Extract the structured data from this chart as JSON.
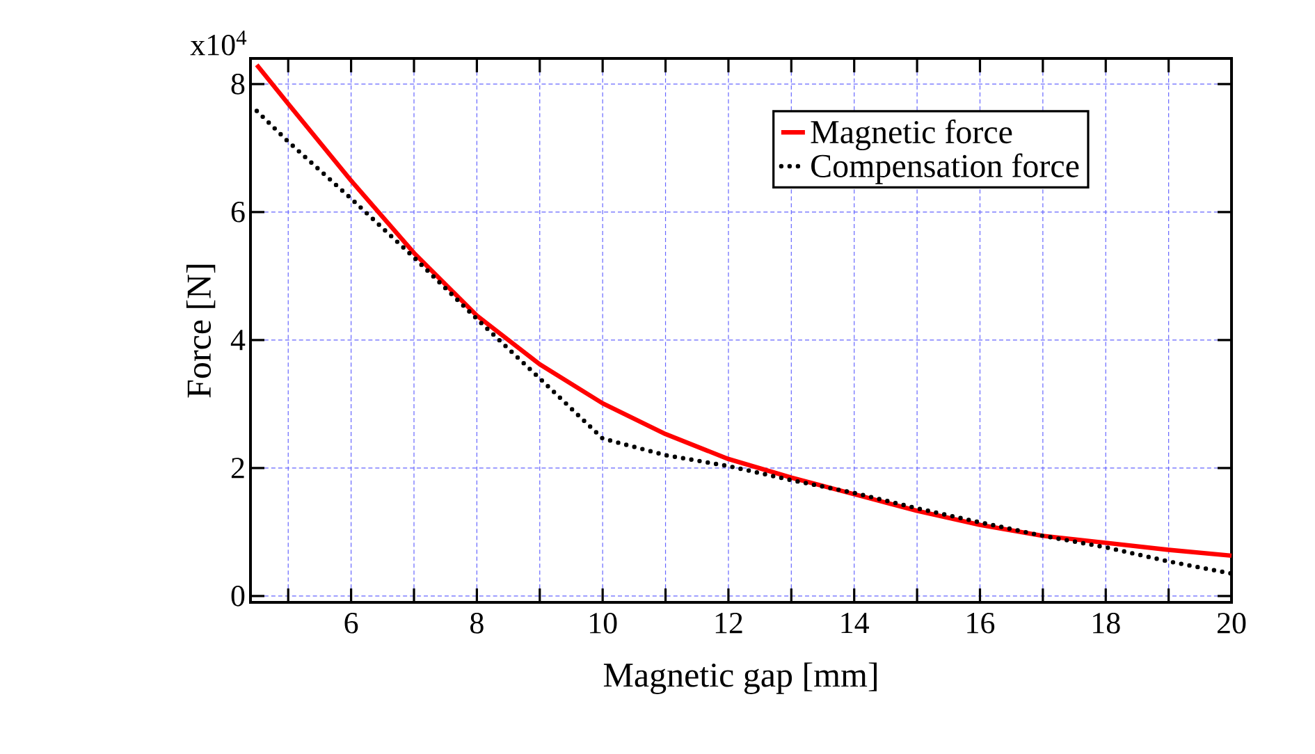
{
  "chart_data": {
    "type": "line",
    "xlabel": "Magnetic gap [mm]",
    "ylabel": "Force [N]",
    "x": [
      4.5,
      5,
      6,
      7,
      8,
      9,
      10,
      11,
      12,
      13,
      14,
      15,
      16,
      17,
      18,
      19,
      20
    ],
    "series": [
      {
        "name": "Magnetic force",
        "color": "#ff0000",
        "line_style": "solid",
        "values": [
          8.3,
          7.69,
          6.49,
          5.36,
          4.38,
          3.62,
          3.01,
          2.53,
          2.14,
          1.85,
          1.59,
          1.33,
          1.11,
          0.94,
          0.83,
          0.72,
          0.63
        ]
      },
      {
        "name": "Compensation force",
        "color": "#000000",
        "line_style": "dotted",
        "values": [
          7.58,
          7.1,
          6.21,
          5.29,
          4.33,
          3.4,
          2.46,
          2.2,
          2.03,
          1.81,
          1.61,
          1.37,
          1.15,
          0.94,
          0.76,
          0.54,
          0.35
        ]
      }
    ],
    "xlim": [
      4.4,
      20
    ],
    "ylim": [
      -0.1,
      8.4
    ],
    "xticks": [
      {
        "value": 5,
        "label": null
      },
      6,
      {
        "value": 7,
        "label": null
      },
      8,
      {
        "value": 9,
        "label": null
      },
      10,
      {
        "value": 11,
        "label": null
      },
      12,
      {
        "value": 13,
        "label": null
      },
      14,
      {
        "value": 15,
        "label": null
      },
      16,
      {
        "value": 17,
        "label": null
      },
      18,
      {
        "value": 19,
        "label": null
      },
      20
    ],
    "yticks": [
      0,
      2,
      4,
      6,
      8
    ],
    "annotations": [
      "x10$^{4}$"
    ],
    "grid": true,
    "legend": "top right",
    "marker": "none"
  }
}
